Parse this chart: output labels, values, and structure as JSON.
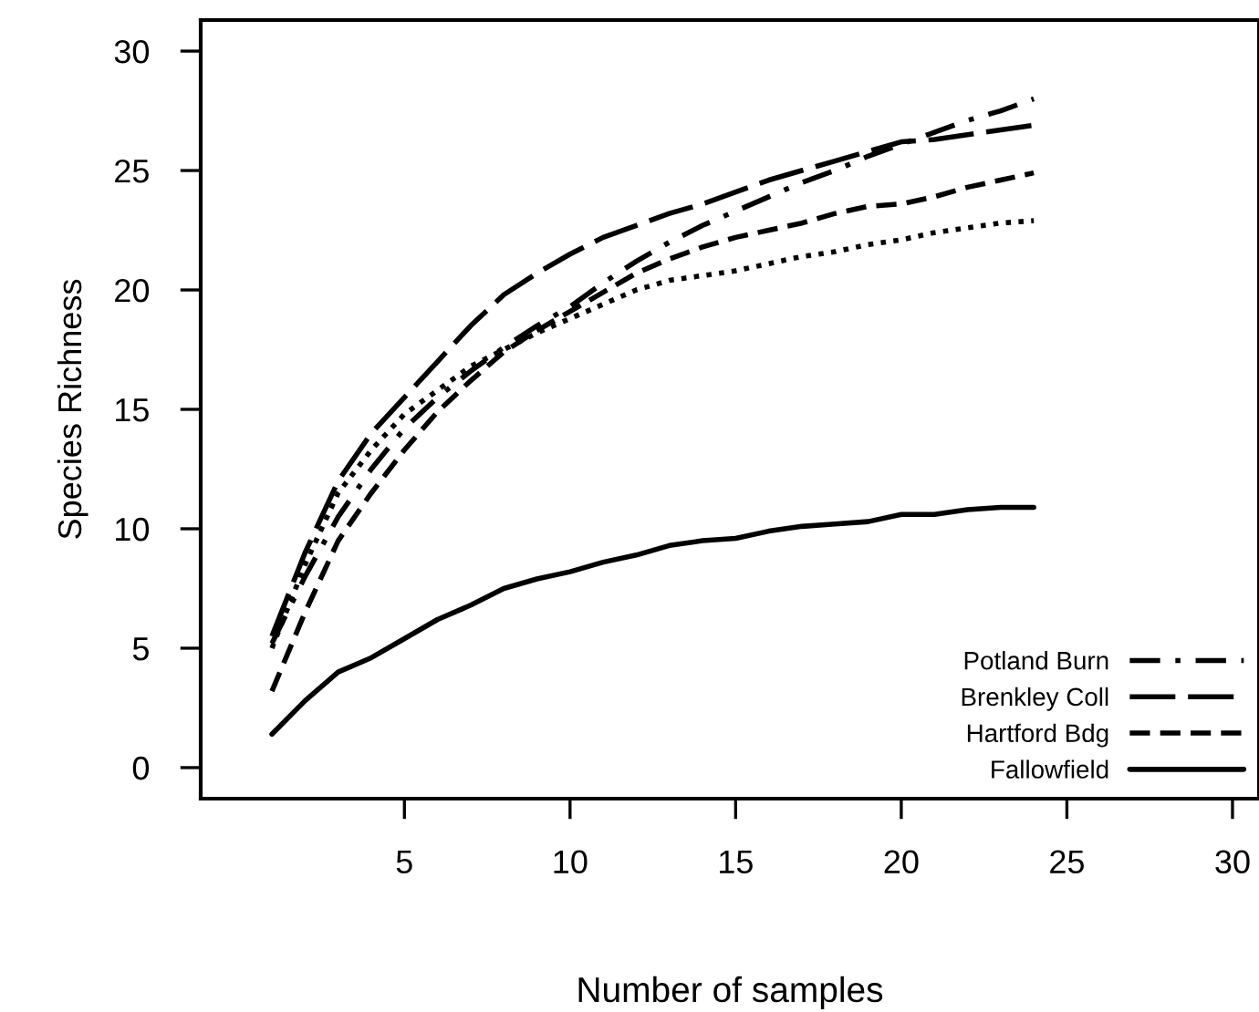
{
  "chart_data": {
    "type": "line",
    "xlabel": "Number of samples",
    "ylabel": "Species Richness",
    "x": [
      1,
      2,
      3,
      4,
      5,
      6,
      7,
      8,
      9,
      10,
      11,
      12,
      13,
      14,
      15,
      16,
      17,
      18,
      19,
      20,
      21,
      22,
      23,
      24
    ],
    "series": [
      {
        "name": "Potland Burn",
        "color": "#000000",
        "line_style": "dashdot",
        "values": [
          5.2,
          8.0,
          10.5,
          12.5,
          14.2,
          15.5,
          16.6,
          17.6,
          18.5,
          19.3,
          20.3,
          21.2,
          22.0,
          22.7,
          23.3,
          23.9,
          24.5,
          25.0,
          25.6,
          26.1,
          26.6,
          27.1,
          27.5,
          28.0
        ]
      },
      {
        "name": "Brenkley Coll",
        "color": "#000000",
        "line_style": "longdash",
        "values": [
          5.5,
          9.0,
          12.0,
          14.0,
          15.5,
          17.0,
          18.5,
          19.8,
          20.7,
          21.5,
          22.2,
          22.7,
          23.2,
          23.6,
          24.1,
          24.6,
          25.0,
          25.4,
          25.8,
          26.2,
          26.3,
          26.5,
          26.7,
          26.9
        ]
      },
      {
        "name": "Hartford Bdg",
        "color": "#000000",
        "line_style": "dashed",
        "values": [
          3.2,
          6.5,
          9.5,
          11.5,
          13.3,
          14.9,
          16.2,
          17.4,
          18.3,
          19.1,
          19.9,
          20.7,
          21.3,
          21.8,
          22.2,
          22.5,
          22.8,
          23.2,
          23.5,
          23.6,
          23.9,
          24.3,
          24.6,
          24.9
        ]
      },
      {
        "color": "#000000",
        "line_style": "dotted",
        "values": [
          5.0,
          8.5,
          11.5,
          13.3,
          14.8,
          15.8,
          16.8,
          17.5,
          18.2,
          18.8,
          19.4,
          20.0,
          20.4,
          20.6,
          20.8,
          21.1,
          21.4,
          21.6,
          21.9,
          22.1,
          22.4,
          22.6,
          22.8,
          22.9
        ]
      },
      {
        "name": "Fallowfield",
        "color": "#000000",
        "line_style": "solid",
        "values": [
          1.4,
          2.8,
          4.0,
          4.6,
          5.4,
          6.2,
          6.8,
          7.5,
          7.9,
          8.2,
          8.6,
          8.9,
          9.3,
          9.5,
          9.6,
          9.9,
          10.1,
          10.2,
          10.3,
          10.6,
          10.6,
          10.8,
          10.9,
          10.9
        ]
      }
    ],
    "xlim": [
      -1.15,
      30.8
    ],
    "xticks": [
      5,
      10,
      15,
      20,
      25,
      30
    ],
    "ylim": [
      -1.3,
      31.3
    ],
    "yticks": [
      0,
      5,
      10,
      15,
      20,
      25,
      30
    ],
    "grid": false,
    "legend": "bottom right",
    "marker": "none"
  }
}
